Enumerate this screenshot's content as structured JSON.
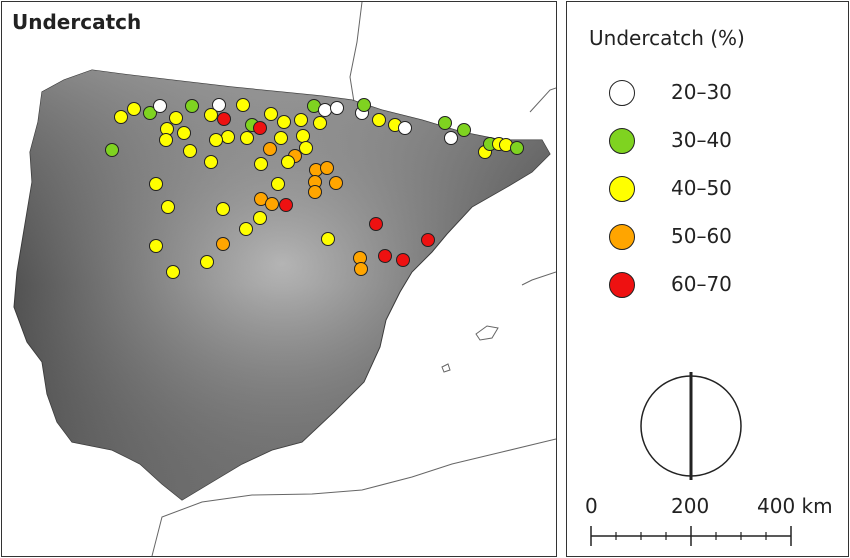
{
  "map": {
    "title": "Undercatch",
    "stations": [
      {
        "c": "40–50"
      },
      {
        "c": "40–50"
      },
      {
        "c": "30–40"
      },
      {
        "c": "20–30"
      },
      {
        "c": "40–50"
      },
      {
        "c": "30–40"
      },
      {
        "c": "20–30"
      },
      {
        "c": "40–50"
      },
      {
        "c": "40–50"
      },
      {
        "c": "30–40"
      },
      {
        "c": "20–30"
      },
      {
        "c": "20–30"
      },
      {
        "c": "30–40"
      }
    ]
  },
  "legend": {
    "title": "Undercatch (%)",
    "classes": [
      {
        "label": "20–30",
        "color": "#ffffff"
      },
      {
        "label": "30–40",
        "color": "#7fd320"
      },
      {
        "label": "40–50",
        "color": "#ffff00"
      },
      {
        "label": "50–60",
        "color": "#ffa500"
      },
      {
        "label": "60–70",
        "color": "#ee1111"
      }
    ]
  },
  "scale": {
    "label_0": "0",
    "label_200": "200",
    "label_400": "400 km"
  }
}
